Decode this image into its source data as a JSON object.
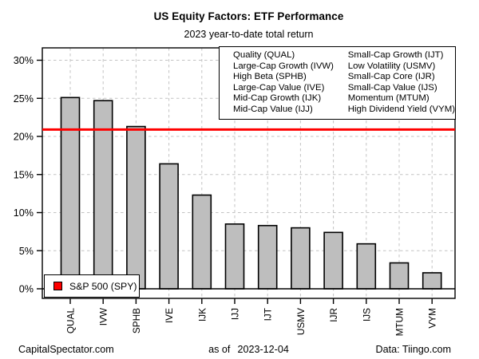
{
  "header": {
    "title": "US Equity Factors: ETF Performance",
    "subtitle": "2023 year-to-date total return"
  },
  "footer": {
    "left": "CapitalSpectator.com",
    "as_of_label": "as of",
    "as_of_date": "2023-12-04",
    "right": "Data: Tiingo.com"
  },
  "chart_data": {
    "type": "bar",
    "title": "US Equity Factors: ETF Performance",
    "subtitle": "2023 year-to-date total return",
    "categories": [
      "QUAL",
      "IVW",
      "SPHB",
      "IVE",
      "IJK",
      "IJJ",
      "IJT",
      "USMV",
      "IJR",
      "IJS",
      "MTUM",
      "VYM"
    ],
    "values": [
      25.1,
      24.7,
      21.3,
      16.4,
      12.3,
      8.5,
      8.3,
      8.0,
      7.4,
      5.9,
      3.4,
      2.1
    ],
    "value_unit": "%",
    "reference_line": {
      "label": "S&P 500 (SPY)",
      "value": 20.9,
      "color": "#FF0000"
    },
    "y_ticks": [
      0,
      5,
      10,
      15,
      20,
      25,
      30
    ],
    "y_tick_labels": [
      "0%",
      "5%",
      "10%",
      "15%",
      "20%",
      "25%",
      "30%"
    ],
    "ylim": [
      0,
      30
    ],
    "grid": true,
    "grid_color": "#C3C3C3",
    "bar_color": "#BEBEBE",
    "bar_border_color": "#000000",
    "legend_position": "top-right",
    "legend": {
      "left": [
        "Quality (QUAL)",
        "Large-Cap Growth (IVW)",
        "High Beta (SPHB)",
        "Large-Cap Value (IVE)",
        "Mid-Cap Growth (IJK)",
        "Mid-Cap Value (IJJ)"
      ],
      "right": [
        "Small-Cap Growth (IJT)",
        "Low Volatility (USMV)",
        "Small-Cap Core (IJR)",
        "Small-Cap Value (IJS)",
        "Momentum (MTUM)",
        "High Dividend Yield (VYM)"
      ]
    }
  }
}
